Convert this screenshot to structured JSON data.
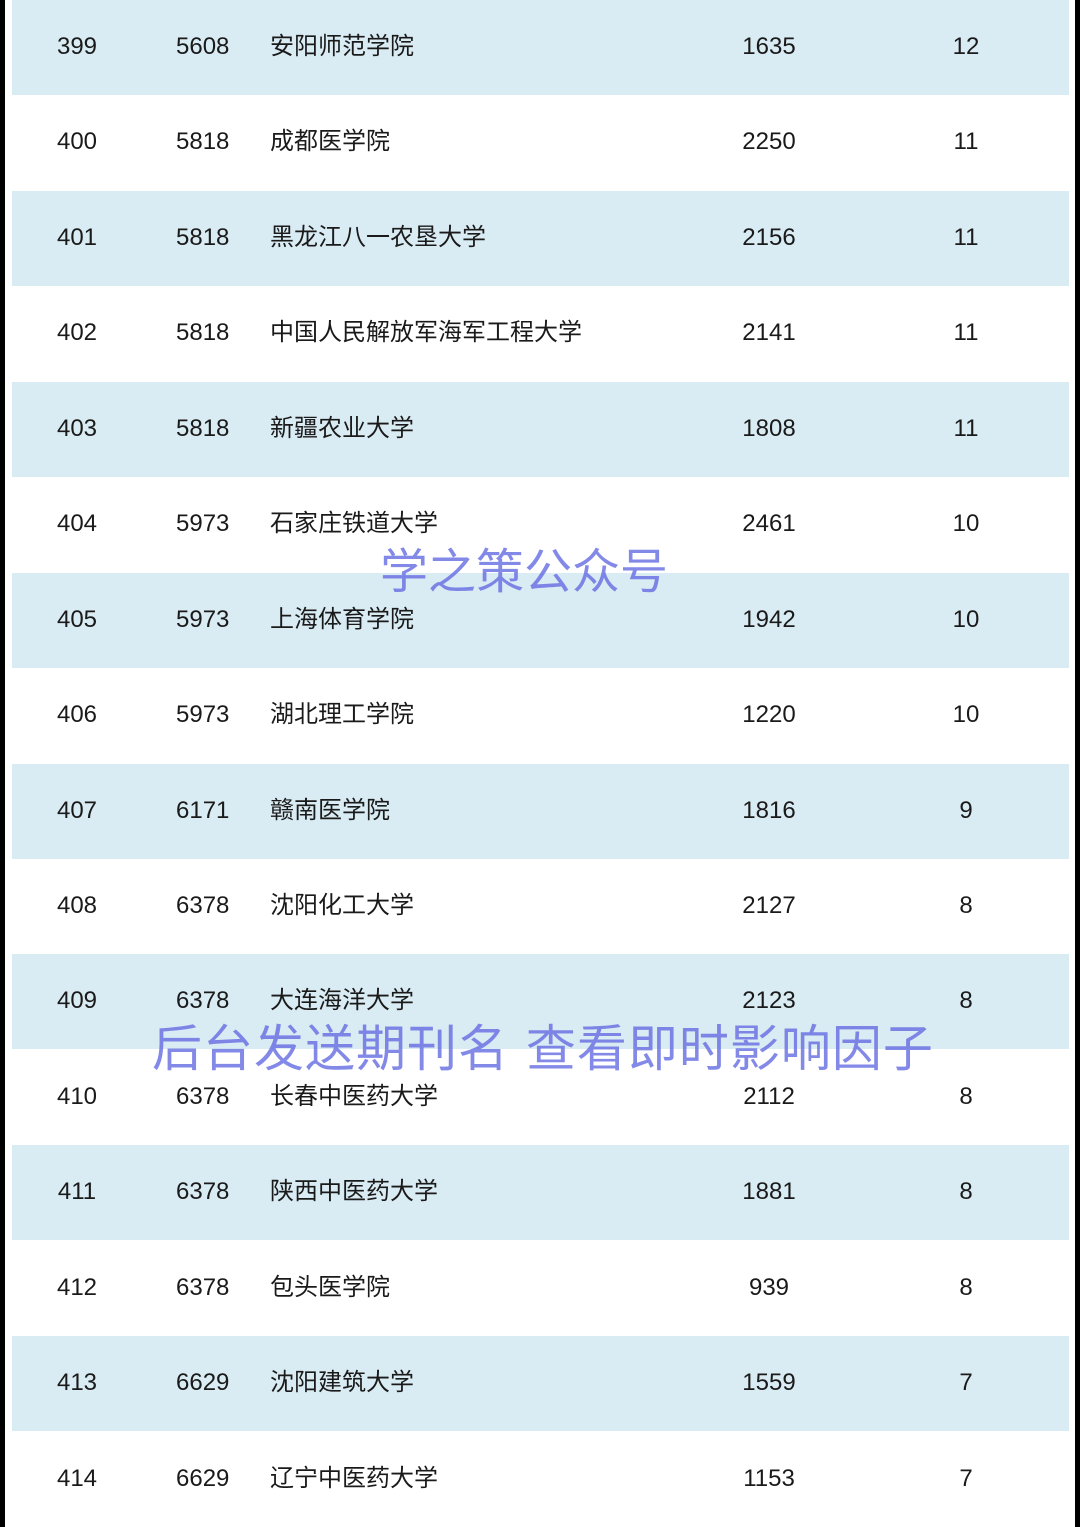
{
  "colors": {
    "row_shade": "#d9ebf3",
    "watermark": "#6e74e0"
  },
  "rows": [
    {
      "rank": "399",
      "score": "5608",
      "name": "安阳师范学院",
      "count": "1635",
      "num": "12"
    },
    {
      "rank": "400",
      "score": "5818",
      "name": "成都医学院",
      "count": "2250",
      "num": "11"
    },
    {
      "rank": "401",
      "score": "5818",
      "name": "黑龙江八一农垦大学",
      "count": "2156",
      "num": "11"
    },
    {
      "rank": "402",
      "score": "5818",
      "name": "中国人民解放军海军工程大学",
      "count": "2141",
      "num": "11"
    },
    {
      "rank": "403",
      "score": "5818",
      "name": "新疆农业大学",
      "count": "1808",
      "num": "11"
    },
    {
      "rank": "404",
      "score": "5973",
      "name": "石家庄铁道大学",
      "count": "2461",
      "num": "10"
    },
    {
      "rank": "405",
      "score": "5973",
      "name": "上海体育学院",
      "count": "1942",
      "num": "10"
    },
    {
      "rank": "406",
      "score": "5973",
      "name": "湖北理工学院",
      "count": "1220",
      "num": "10"
    },
    {
      "rank": "407",
      "score": "6171",
      "name": "赣南医学院",
      "count": "1816",
      "num": "9"
    },
    {
      "rank": "408",
      "score": "6378",
      "name": "沈阳化工大学",
      "count": "2127",
      "num": "8"
    },
    {
      "rank": "409",
      "score": "6378",
      "name": "大连海洋大学",
      "count": "2123",
      "num": "8"
    },
    {
      "rank": "410",
      "score": "6378",
      "name": "长春中医药大学",
      "count": "2112",
      "num": "8"
    },
    {
      "rank": "411",
      "score": "6378",
      "name": "陕西中医药大学",
      "count": "1881",
      "num": "8"
    },
    {
      "rank": "412",
      "score": "6378",
      "name": "包头医学院",
      "count": "939",
      "num": "8"
    },
    {
      "rank": "413",
      "score": "6629",
      "name": "沈阳建筑大学",
      "count": "1559",
      "num": "7"
    },
    {
      "rank": "414",
      "score": "6629",
      "name": "辽宁中医药大学",
      "count": "1153",
      "num": "7"
    }
  ],
  "watermarks": {
    "brand": "学之策公众号",
    "promo": "后台发送期刊名 查看即时影响因子"
  }
}
